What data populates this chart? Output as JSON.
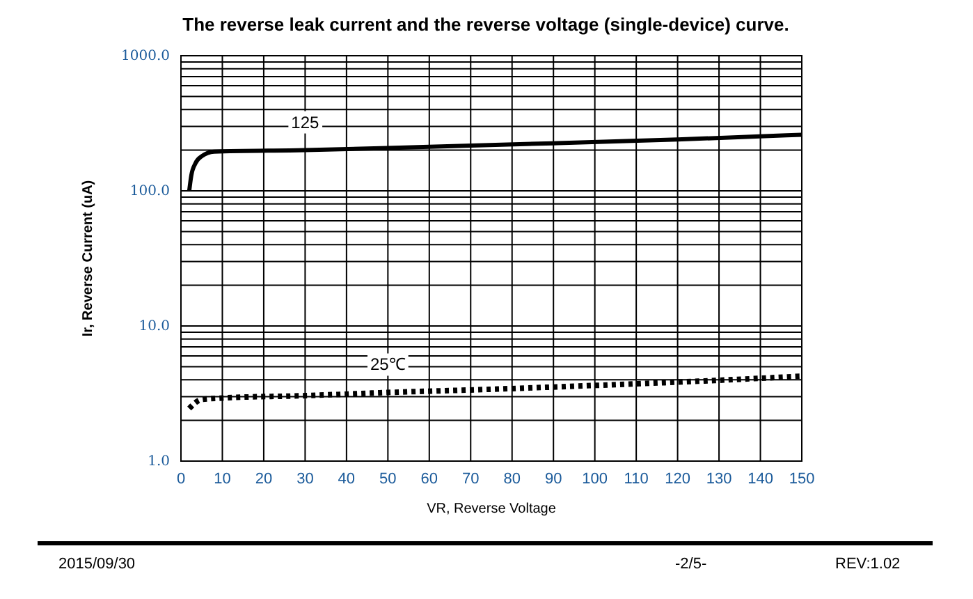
{
  "chart_data": {
    "type": "line",
    "title": "The reverse leak current and the reverse voltage (single-device) curve.",
    "xlabel": "VR, Reverse Voltage",
    "ylabel": "Ir, Reverse Current (uA)",
    "log": "y",
    "grid": true,
    "marker": "none",
    "xlim": [
      0,
      150
    ],
    "xticks": [
      0,
      10,
      20,
      30,
      40,
      50,
      60,
      70,
      80,
      90,
      100,
      110,
      120,
      130,
      140,
      150
    ],
    "ylim": [
      1,
      1000
    ],
    "yticks": [
      {
        "value": 1,
        "label": "1.0"
      },
      {
        "value": 10,
        "label": "10.0"
      },
      {
        "value": 100,
        "label": "100.0"
      },
      {
        "value": 1000,
        "label": "1000.0"
      }
    ],
    "series": [
      {
        "name": "125",
        "color": "#000000",
        "line_style": "solid",
        "x": [
          2,
          2.5,
          3.5,
          5,
          8,
          30,
          60,
          90,
          120,
          150
        ],
        "values": [
          100,
          130,
          160,
          180,
          195,
          200,
          212,
          225,
          240,
          260
        ]
      },
      {
        "name": "25℃",
        "color": "#000000",
        "line_style": "dotted",
        "x": [
          2,
          5,
          10,
          30,
          50,
          75,
          100,
          125,
          150
        ],
        "values": [
          2.45,
          2.86,
          2.93,
          3.05,
          3.22,
          3.4,
          3.63,
          3.9,
          4.25
        ]
      }
    ],
    "annotations": [
      "2015/09/30",
      "-2/5-",
      "REV:1.02"
    ]
  }
}
